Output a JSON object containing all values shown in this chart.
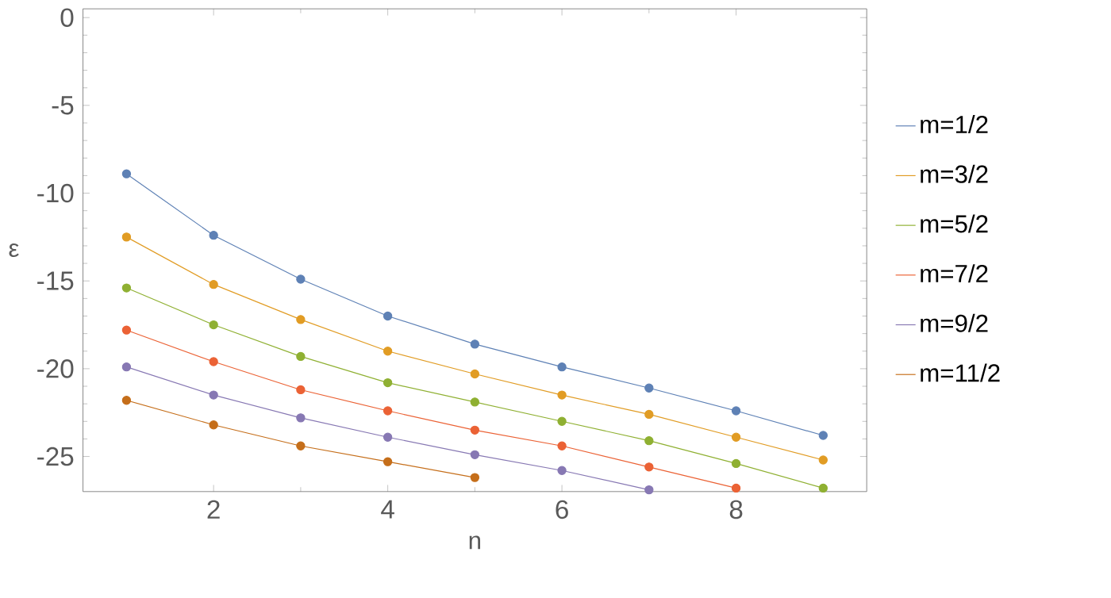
{
  "chart_data": {
    "type": "line",
    "xlabel": "n",
    "ylabel": "ε",
    "x": [
      1,
      2,
      3,
      4,
      5,
      6,
      7,
      8,
      9
    ],
    "xlim": [
      0.5,
      9.5
    ],
    "ylim": [
      -27,
      0.5
    ],
    "xticks": [
      2,
      4,
      6,
      8
    ],
    "yticks": [
      -25,
      -20,
      -15,
      -10,
      -5,
      0
    ],
    "marker": "circle",
    "line_style": "solid",
    "legend": "right",
    "grid": false,
    "series": [
      {
        "name": "m=1/2",
        "color": "#5e81b5",
        "values": [
          -8.9,
          -12.4,
          -14.9,
          -17.0,
          -18.6,
          -19.9,
          -21.1,
          -22.4,
          -23.8
        ]
      },
      {
        "name": "m=3/2",
        "color": "#e19c24",
        "values": [
          -12.5,
          -15.2,
          -17.2,
          -19.0,
          -20.3,
          -21.5,
          -22.6,
          -23.9,
          -25.2
        ]
      },
      {
        "name": "m=5/2",
        "color": "#8fb032",
        "values": [
          -15.4,
          -17.5,
          -19.3,
          -20.8,
          -21.9,
          -23.0,
          -24.1,
          -25.4,
          -26.8
        ]
      },
      {
        "name": "m=7/2",
        "color": "#eb6235",
        "values": [
          -17.8,
          -19.6,
          -21.2,
          -22.4,
          -23.5,
          -24.4,
          -25.6,
          -26.8,
          null
        ]
      },
      {
        "name": "m=9/2",
        "color": "#8778b3",
        "values": [
          -19.9,
          -21.5,
          -22.8,
          -23.9,
          -24.9,
          -25.8,
          -26.9,
          null,
          null
        ]
      },
      {
        "name": "m=11/2",
        "color": "#c56e1a",
        "values": [
          -21.8,
          -23.2,
          -24.4,
          -25.3,
          -26.2,
          null,
          null,
          null,
          null
        ]
      }
    ]
  }
}
